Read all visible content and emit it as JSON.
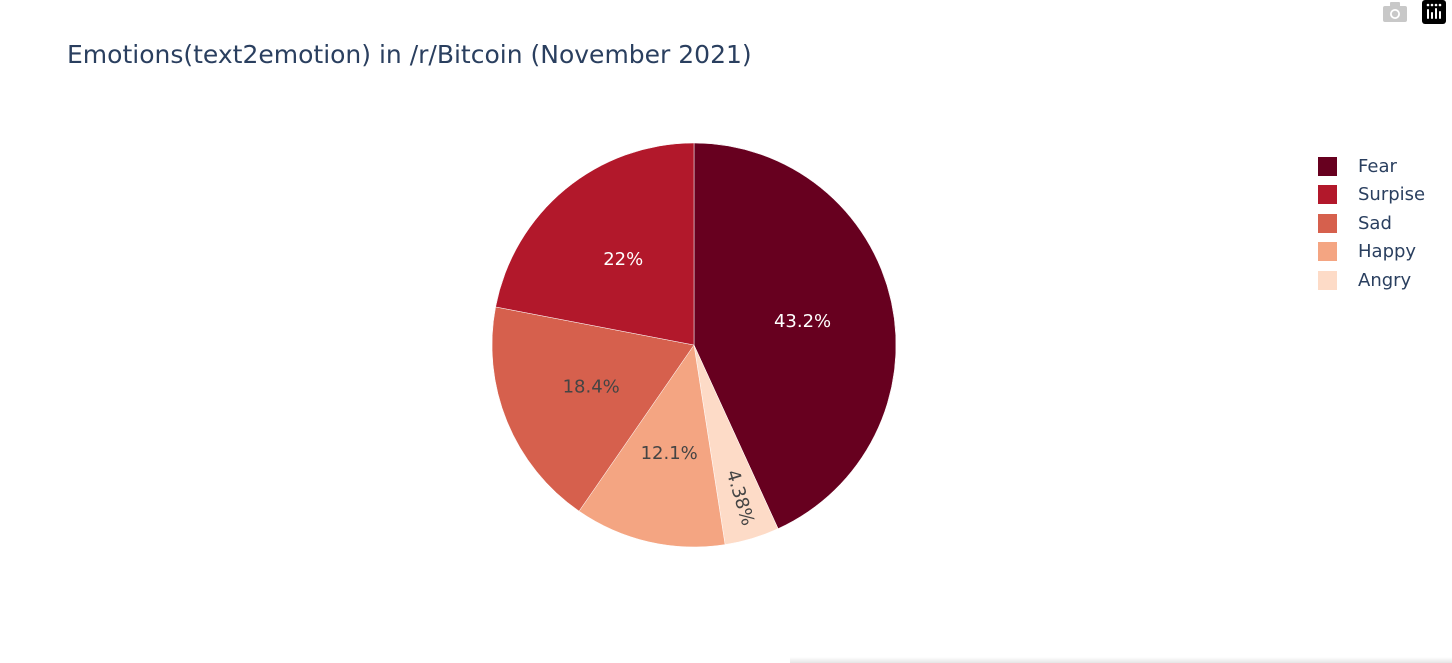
{
  "chart_data": {
    "type": "pie",
    "title": "Emotions(text2emotion) in /r/Bitcoin (November 2021)",
    "slices": [
      {
        "label": "Fear",
        "value": 43.2,
        "text": "43.2%",
        "color": "#67001f",
        "text_color": "#ffffff"
      },
      {
        "label": "Angry",
        "value": 4.38,
        "text": "4.38%",
        "color": "#fddbc7",
        "text_color": "#444444"
      },
      {
        "label": "Happy",
        "value": 12.1,
        "text": "12.1%",
        "color": "#f4a582",
        "text_color": "#444444"
      },
      {
        "label": "Sad",
        "value": 18.4,
        "text": "18.4%",
        "color": "#d6604d",
        "text_color": "#444444"
      },
      {
        "label": "Surpise",
        "value": 22,
        "text": "22%",
        "color": "#b2182b",
        "text_color": "#ffffff"
      }
    ],
    "legend": {
      "placement": "top-right",
      "items": [
        {
          "label": "Fear",
          "color": "#67001f"
        },
        {
          "label": "Surpise",
          "color": "#b2182b"
        },
        {
          "label": "Sad",
          "color": "#d6604d"
        },
        {
          "label": "Happy",
          "color": "#f4a582"
        },
        {
          "label": "Angry",
          "color": "#fddbc7"
        }
      ]
    }
  },
  "toolbar": {
    "icons": [
      "camera-icon",
      "plotly-logo-icon"
    ]
  },
  "colors": {
    "title": "#2a3f5f",
    "background": "#ffffff"
  }
}
